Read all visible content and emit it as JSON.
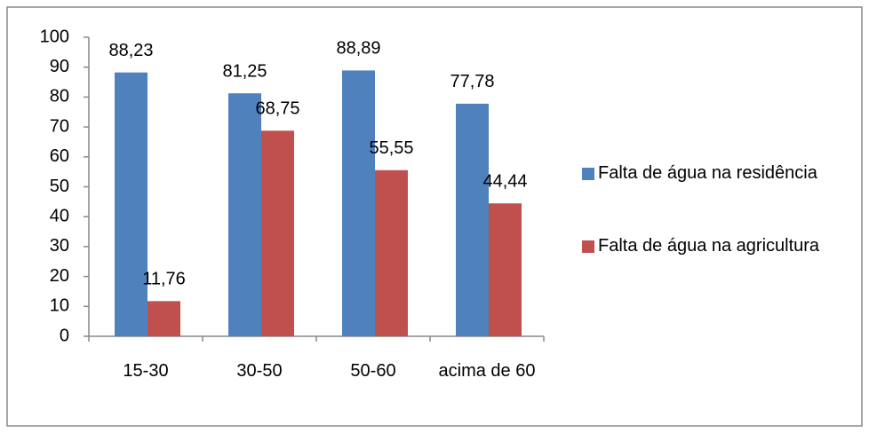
{
  "chart_data": {
    "type": "bar",
    "categories": [
      "15-30",
      "30-50",
      "50-60",
      "acima de 60"
    ],
    "series": [
      {
        "name": "Falta de água na residência",
        "color": "#4f81bd",
        "values": [
          88.23,
          81.25,
          88.89,
          77.78
        ],
        "value_labels": [
          "88,23",
          "81,25",
          "88,89",
          "77,78"
        ]
      },
      {
        "name": "Falta de água na agricultura",
        "color": "#c0504d",
        "values": [
          11.76,
          68.75,
          55.55,
          44.44
        ],
        "value_labels": [
          "11,76",
          "68,75",
          "55,55",
          "44,44"
        ]
      }
    ],
    "ylim": [
      0,
      100
    ],
    "yticks": [
      0,
      10,
      20,
      30,
      40,
      50,
      60,
      70,
      80,
      90,
      100
    ],
    "grid": false,
    "legend": "right"
  }
}
